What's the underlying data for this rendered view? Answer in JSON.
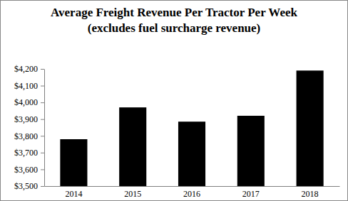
{
  "chart_data": {
    "type": "bar",
    "title": "Average Freight Revenue Per Tractor Per Week",
    "subtitle": "(excludes fuel surcharge revenue)",
    "categories": [
      "2014",
      "2015",
      "2016",
      "2017",
      "2018"
    ],
    "values": [
      3780,
      3970,
      3885,
      3920,
      4190
    ],
    "color": "#000000",
    "ylim": [
      3500,
      4200
    ],
    "yticks": [
      {
        "value": 3500,
        "label": "$3,500"
      },
      {
        "value": 3600,
        "label": "$3,600"
      },
      {
        "value": 3700,
        "label": "$3,700"
      },
      {
        "value": 3800,
        "label": "$3,800"
      },
      {
        "value": 3900,
        "label": "$3,900"
      },
      {
        "value": 4000,
        "label": "$4,000"
      },
      {
        "value": 4100,
        "label": "$4,100"
      },
      {
        "value": 4200,
        "label": "$4,200"
      }
    ],
    "grid": false
  }
}
